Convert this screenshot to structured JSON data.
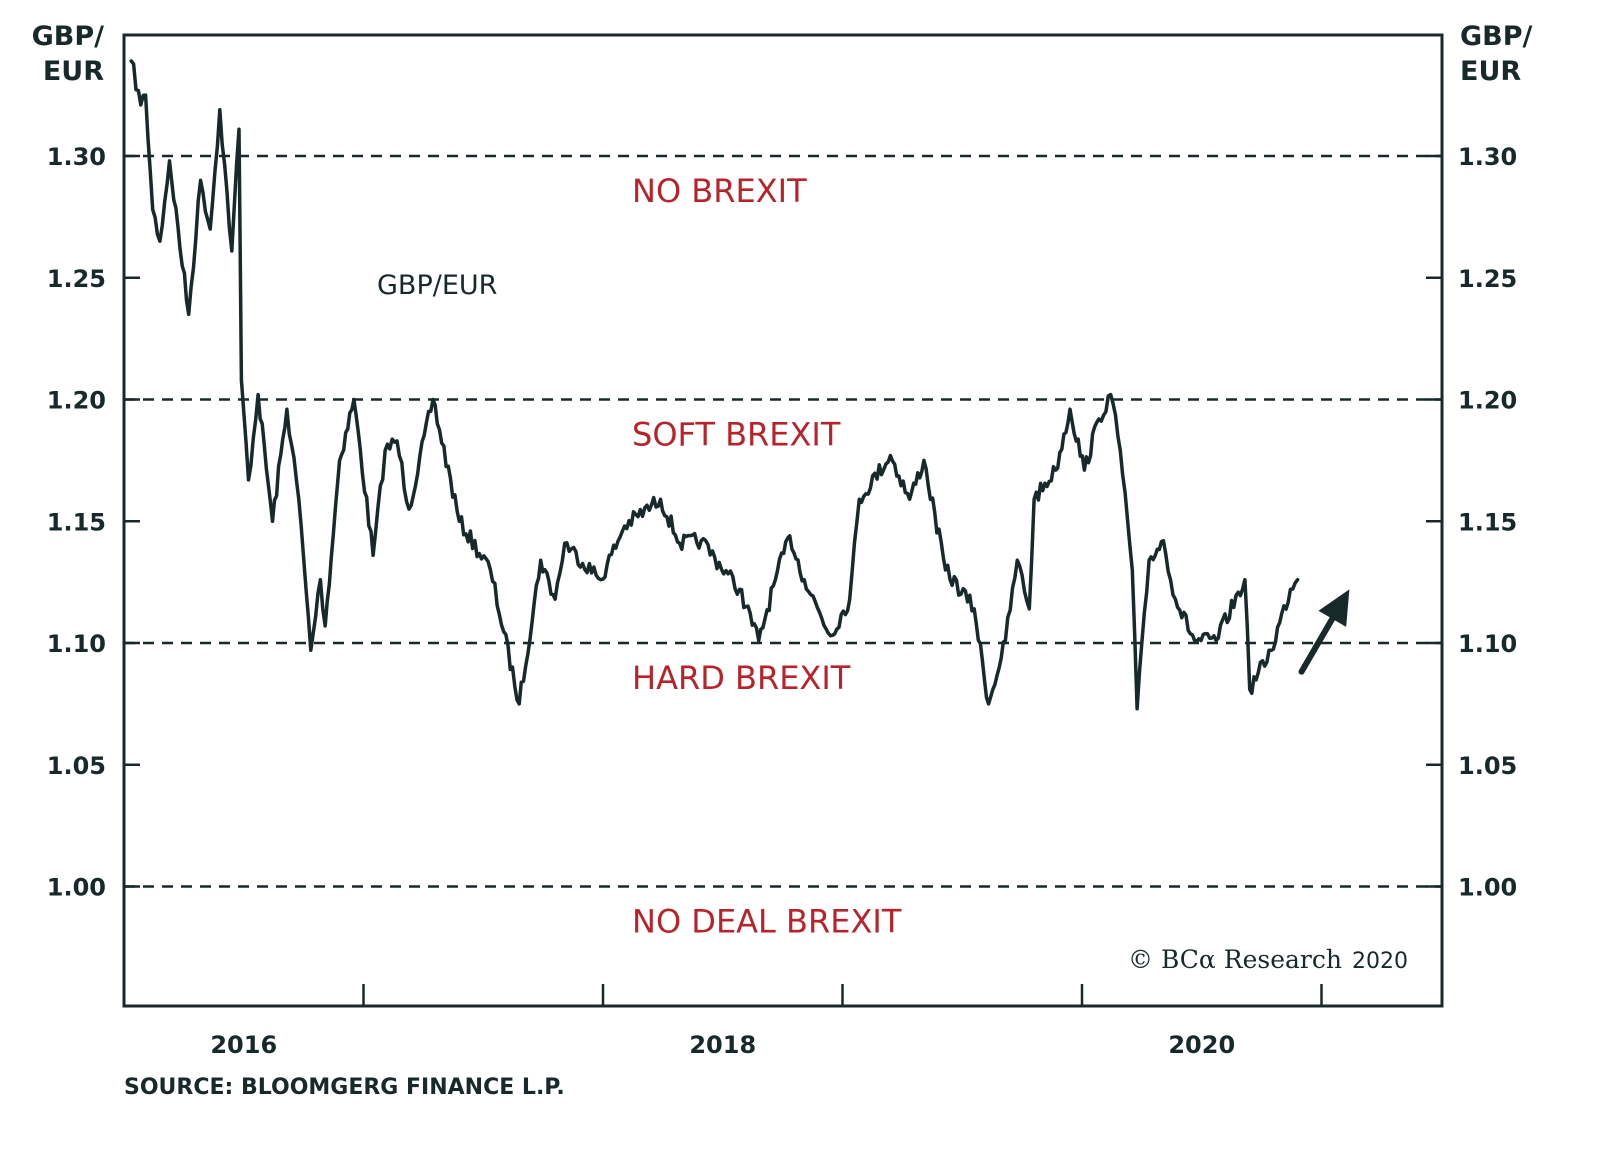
{
  "chart_data": {
    "type": "line",
    "title": "",
    "xlabel": "",
    "ylabel": "GBP/EUR",
    "ylabel_left": [
      "GBP/",
      "EUR"
    ],
    "ylabel_right": [
      "GBP/",
      "EUR"
    ],
    "ylim": [
      0.95,
      1.35
    ],
    "xlim": [
      2016.0,
      2021.5
    ],
    "y_ticks": [
      1.3,
      1.25,
      1.2,
      1.15,
      1.1,
      1.05,
      1.0
    ],
    "y_tick_labels": [
      "1.30",
      "1.25",
      "1.20",
      "1.15",
      "1.10",
      "1.05",
      "1.00"
    ],
    "x_ticks": [
      2017,
      2018,
      2019,
      2020,
      2021
    ],
    "x_tick_labels": [
      {
        "label": "2016",
        "center": 2016.5
      },
      {
        "label": "2018",
        "center": 2018.5
      },
      {
        "label": "2020",
        "center": 2020.5
      }
    ],
    "grid": false,
    "reference_lines": [
      {
        "value": 1.3,
        "style": "dashed",
        "zone_label": "NO BREXIT"
      },
      {
        "value": 1.2,
        "style": "dashed",
        "zone_label": "SOFT BREXIT"
      },
      {
        "value": 1.1,
        "style": "dashed",
        "zone_label": "HARD BREXIT"
      },
      {
        "value": 1.0,
        "style": "dashed",
        "zone_label": "NO DEAL BREXIT"
      }
    ],
    "zone_label_color": "#b8232b",
    "line_color": "#18292b",
    "series": [
      {
        "name": "GBP/EUR",
        "x": [
          2016.03,
          2016.07,
          2016.09,
          2016.12,
          2016.15,
          2016.19,
          2016.27,
          2016.32,
          2016.36,
          2016.4,
          2016.45,
          2016.48,
          2016.49,
          2016.52,
          2016.56,
          2016.62,
          2016.68,
          2016.73,
          2016.78,
          2016.82,
          2016.84,
          2016.9,
          2016.96,
          2017.04,
          2017.09,
          2017.14,
          2017.19,
          2017.29,
          2017.4,
          2017.53,
          2017.65,
          2017.74,
          2017.8,
          2017.84,
          2017.99,
          2018.09,
          2018.24,
          2018.32,
          2018.41,
          2018.57,
          2018.65,
          2018.72,
          2018.78,
          2018.84,
          2018.95,
          2019.03,
          2019.07,
          2019.2,
          2019.28,
          2019.34,
          2019.43,
          2019.55,
          2019.61,
          2019.68,
          2019.73,
          2019.78,
          2019.8,
          2019.89,
          2019.95,
          2020.01,
          2020.07,
          2020.12,
          2020.16,
          2020.21,
          2020.23,
          2020.28,
          2020.34,
          2020.39,
          2020.47,
          2020.56,
          2020.68,
          2020.7,
          2020.79,
          2020.87,
          2020.9
        ],
        "values": [
          1.339,
          1.321,
          1.325,
          1.278,
          1.265,
          1.298,
          1.235,
          1.29,
          1.27,
          1.319,
          1.261,
          1.311,
          1.208,
          1.167,
          1.202,
          1.15,
          1.196,
          1.159,
          1.097,
          1.126,
          1.107,
          1.175,
          1.2,
          1.136,
          1.179,
          1.183,
          1.155,
          1.2,
          1.15,
          1.13,
          1.075,
          1.134,
          1.118,
          1.141,
          1.126,
          1.148,
          1.159,
          1.141,
          1.142,
          1.122,
          1.101,
          1.126,
          1.144,
          1.126,
          1.103,
          1.118,
          1.159,
          1.177,
          1.159,
          1.175,
          1.13,
          1.114,
          1.075,
          1.101,
          1.134,
          1.114,
          1.159,
          1.171,
          1.196,
          1.171,
          1.192,
          1.202,
          1.179,
          1.13,
          1.073,
          1.134,
          1.142,
          1.118,
          1.101,
          1.101,
          1.126,
          1.081,
          1.097,
          1.122,
          1.126
        ]
      }
    ],
    "annotations": [
      {
        "type": "text",
        "text": "GBP/EUR",
        "x": 2017.3,
        "y": 1.252
      },
      {
        "type": "arrow",
        "direction": "up-right",
        "from": [
          2021.0,
          1.08
        ],
        "to": [
          2021.2,
          1.122
        ]
      }
    ]
  },
  "labels": {
    "unit_left_line1": "GBP/",
    "unit_left_line2": "EUR",
    "unit_right_line1": "GBP/",
    "unit_right_line2": "EUR",
    "series_label": "GBP/EUR",
    "source": "SOURCE: BLOOMGERG FINANCE L.P.",
    "credit_brand": "© BCα Research",
    "credit_year": "2020"
  }
}
